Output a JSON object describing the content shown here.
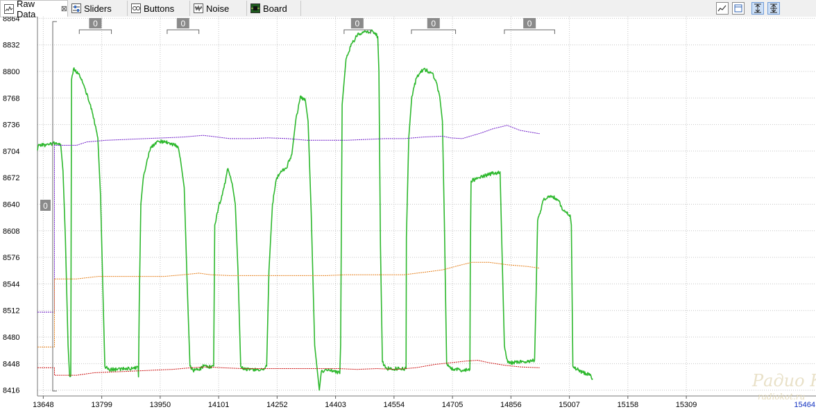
{
  "tabs": [
    {
      "label": "Raw Data",
      "icon": "raw-data-icon",
      "active": true,
      "close": "⊠"
    },
    {
      "label": "Sliders",
      "icon": "sliders-icon"
    },
    {
      "label": "Buttons",
      "icon": "buttons-icon"
    },
    {
      "label": "Noise",
      "icon": "noise-icon"
    },
    {
      "label": "Board",
      "icon": "board-icon"
    }
  ],
  "toolbar": {
    "icons": [
      "chart-view-icon",
      "table-view-icon",
      "fit-vertical-icon",
      "fit-both-icon"
    ]
  },
  "watermark": {
    "line1": "Радио КОТ",
    "line2": "radiokot.ru"
  },
  "chart_data": {
    "type": "line",
    "title": "",
    "xlabel": "",
    "ylabel": "",
    "xlim": [
      13633,
      15644
    ],
    "ylim": [
      8409,
      8866
    ],
    "grid": true,
    "y_ticks": [
      8416,
      8448,
      8480,
      8512,
      8544,
      8576,
      8608,
      8640,
      8672,
      8704,
      8736,
      8768,
      8800,
      8832,
      8864
    ],
    "x_ticks": [
      13648,
      13799,
      13950,
      14101,
      14252,
      14403,
      14554,
      14705,
      14856,
      15007,
      15158,
      15309
    ],
    "x_tick_cut": "15464",
    "markers": [
      {
        "label": "0",
        "x1": 13741,
        "x2": 13824
      },
      {
        "label": "0",
        "x1": 13968,
        "x2": 14050
      },
      {
        "label": "0",
        "x1": 14425,
        "x2": 14493
      },
      {
        "label": "0",
        "x1": 14599,
        "x2": 14713
      },
      {
        "label": "0",
        "x1": 14839,
        "x2": 14969
      }
    ],
    "y_marker": {
      "label": "0",
      "y1": 8415,
      "y2": 8860
    },
    "series": [
      {
        "color": "#2db82d",
        "width": 1.6,
        "noise": 2.2,
        "points": [
          [
            13633,
            8705
          ],
          [
            13636,
            8712
          ],
          [
            13655,
            8711
          ],
          [
            13680,
            8714
          ],
          [
            13693,
            8712
          ],
          [
            13699,
            8680
          ],
          [
            13705,
            8600
          ],
          [
            13712,
            8470
          ],
          [
            13716,
            8433
          ],
          [
            13719,
            8433
          ],
          [
            13721,
            8790
          ],
          [
            13726,
            8803
          ],
          [
            13742,
            8795
          ],
          [
            13755,
            8780
          ],
          [
            13770,
            8760
          ],
          [
            13782,
            8735
          ],
          [
            13789,
            8720
          ],
          [
            13796,
            8650
          ],
          [
            13803,
            8520
          ],
          [
            13807,
            8445
          ],
          [
            13815,
            8441
          ],
          [
            13840,
            8441
          ],
          [
            13870,
            8442
          ],
          [
            13893,
            8443
          ],
          [
            13894,
            8432
          ],
          [
            13896,
            8520
          ],
          [
            13900,
            8640
          ],
          [
            13906,
            8670
          ],
          [
            13915,
            8690
          ],
          [
            13925,
            8708
          ],
          [
            13945,
            8716
          ],
          [
            13970,
            8714
          ],
          [
            13995,
            8710
          ],
          [
            14002,
            8695
          ],
          [
            14012,
            8660
          ],
          [
            14020,
            8540
          ],
          [
            14027,
            8445
          ],
          [
            14035,
            8440
          ],
          [
            14050,
            8440
          ],
          [
            14064,
            8446
          ],
          [
            14075,
            8444
          ],
          [
            14088,
            8445
          ],
          [
            14091,
            8615
          ],
          [
            14100,
            8635
          ],
          [
            14115,
            8660
          ],
          [
            14125,
            8683
          ],
          [
            14136,
            8665
          ],
          [
            14144,
            8640
          ],
          [
            14151,
            8560
          ],
          [
            14158,
            8445
          ],
          [
            14170,
            8441
          ],
          [
            14200,
            8441
          ],
          [
            14220,
            8442
          ],
          [
            14225,
            8445
          ],
          [
            14231,
            8560
          ],
          [
            14240,
            8640
          ],
          [
            14250,
            8670
          ],
          [
            14262,
            8680
          ],
          [
            14275,
            8683
          ],
          [
            14290,
            8700
          ],
          [
            14300,
            8740
          ],
          [
            14312,
            8770
          ],
          [
            14325,
            8765
          ],
          [
            14332,
            8740
          ],
          [
            14340,
            8630
          ],
          [
            14349,
            8470
          ],
          [
            14358,
            8430
          ],
          [
            14361,
            8416
          ],
          [
            14366,
            8438
          ],
          [
            14380,
            8440
          ],
          [
            14400,
            8439
          ],
          [
            14414,
            8436
          ],
          [
            14416,
            8470
          ],
          [
            14420,
            8760
          ],
          [
            14430,
            8815
          ],
          [
            14442,
            8830
          ],
          [
            14460,
            8845
          ],
          [
            14480,
            8848
          ],
          [
            14500,
            8848
          ],
          [
            14512,
            8842
          ],
          [
            14515,
            8800
          ],
          [
            14519,
            8590
          ],
          [
            14524,
            8450
          ],
          [
            14535,
            8442
          ],
          [
            14560,
            8442
          ],
          [
            14585,
            8442
          ],
          [
            14586,
            8600
          ],
          [
            14592,
            8720
          ],
          [
            14600,
            8770
          ],
          [
            14612,
            8792
          ],
          [
            14630,
            8803
          ],
          [
            14652,
            8798
          ],
          [
            14663,
            8787
          ],
          [
            14672,
            8770
          ],
          [
            14679,
            8740
          ],
          [
            14684,
            8620
          ],
          [
            14690,
            8448
          ],
          [
            14700,
            8442
          ],
          [
            14730,
            8440
          ],
          [
            14750,
            8441
          ],
          [
            14751,
            8573
          ],
          [
            14753,
            8668
          ],
          [
            14775,
            8672
          ],
          [
            14800,
            8676
          ],
          [
            14828,
            8679
          ],
          [
            14832,
            8600
          ],
          [
            14839,
            8470
          ],
          [
            14848,
            8449
          ],
          [
            14875,
            8450
          ],
          [
            14905,
            8450
          ],
          [
            14917,
            8452
          ],
          [
            14921,
            8530
          ],
          [
            14925,
            8620
          ],
          [
            14940,
            8645
          ],
          [
            14960,
            8650
          ],
          [
            14978,
            8645
          ],
          [
            14990,
            8633
          ],
          [
            15006,
            8627
          ],
          [
            15009,
            8627
          ],
          [
            15012,
            8615
          ],
          [
            15016,
            8445
          ],
          [
            15030,
            8440
          ],
          [
            15050,
            8436
          ],
          [
            15060,
            8434
          ],
          [
            15067,
            8430
          ]
        ]
      },
      {
        "color": "#6b17c7",
        "width": 1.0,
        "dashed": true,
        "points": [
          [
            13633,
            8510
          ],
          [
            13677,
            8510
          ],
          [
            13677,
            8711
          ],
          [
            13734,
            8711
          ],
          [
            13760,
            8715
          ],
          [
            13810,
            8717
          ],
          [
            13860,
            8718
          ],
          [
            13910,
            8719
          ],
          [
            13960,
            8720
          ],
          [
            14010,
            8721
          ],
          [
            14060,
            8723
          ],
          [
            14080,
            8722
          ],
          [
            14130,
            8719
          ],
          [
            14180,
            8719
          ],
          [
            14230,
            8720
          ],
          [
            14280,
            8719
          ],
          [
            14330,
            8717
          ],
          [
            14380,
            8717
          ],
          [
            14430,
            8717
          ],
          [
            14480,
            8718
          ],
          [
            14530,
            8719
          ],
          [
            14580,
            8719
          ],
          [
            14630,
            8721
          ],
          [
            14680,
            8722
          ],
          [
            14700,
            8720
          ],
          [
            14730,
            8719
          ],
          [
            14780,
            8726
          ],
          [
            14810,
            8731
          ],
          [
            14846,
            8735
          ],
          [
            14880,
            8729
          ],
          [
            14930,
            8725
          ]
        ]
      },
      {
        "color": "#e57e18",
        "width": 1.0,
        "dashed": true,
        "points": [
          [
            13633,
            8468
          ],
          [
            13677,
            8468
          ],
          [
            13677,
            8550
          ],
          [
            13734,
            8550
          ],
          [
            13790,
            8553
          ],
          [
            13850,
            8553
          ],
          [
            13910,
            8553
          ],
          [
            13960,
            8553
          ],
          [
            14010,
            8555
          ],
          [
            14050,
            8557
          ],
          [
            14080,
            8555
          ],
          [
            14130,
            8554
          ],
          [
            14180,
            8554
          ],
          [
            14230,
            8554
          ],
          [
            14280,
            8554
          ],
          [
            14330,
            8554
          ],
          [
            14380,
            8554
          ],
          [
            14430,
            8555
          ],
          [
            14480,
            8555
          ],
          [
            14530,
            8555
          ],
          [
            14580,
            8555
          ],
          [
            14630,
            8558
          ],
          [
            14680,
            8561
          ],
          [
            14720,
            8566
          ],
          [
            14755,
            8570
          ],
          [
            14800,
            8570
          ],
          [
            14848,
            8567
          ],
          [
            14900,
            8565
          ],
          [
            14930,
            8563
          ]
        ]
      },
      {
        "color": "#cc1111",
        "width": 1.0,
        "dashed": true,
        "points": [
          [
            13633,
            8443
          ],
          [
            13677,
            8443
          ],
          [
            13677,
            8434
          ],
          [
            13734,
            8434
          ],
          [
            13780,
            8437
          ],
          [
            13830,
            8438
          ],
          [
            13880,
            8439
          ],
          [
            13930,
            8440
          ],
          [
            13980,
            8441
          ],
          [
            14030,
            8443
          ],
          [
            14070,
            8444
          ],
          [
            14110,
            8443
          ],
          [
            14160,
            8442
          ],
          [
            14210,
            8442
          ],
          [
            14260,
            8442
          ],
          [
            14310,
            8442
          ],
          [
            14360,
            8442
          ],
          [
            14410,
            8442
          ],
          [
            14460,
            8441
          ],
          [
            14510,
            8442
          ],
          [
            14560,
            8441
          ],
          [
            14610,
            8443
          ],
          [
            14660,
            8447
          ],
          [
            14700,
            8449
          ],
          [
            14740,
            8451
          ],
          [
            14770,
            8452
          ],
          [
            14800,
            8449
          ],
          [
            14840,
            8446
          ],
          [
            14880,
            8444
          ],
          [
            14930,
            8443
          ]
        ]
      }
    ]
  }
}
